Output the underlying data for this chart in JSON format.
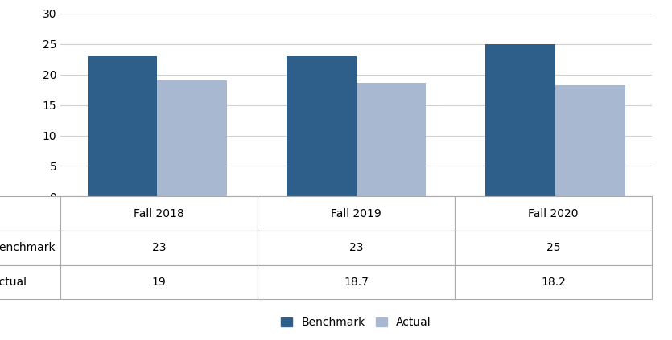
{
  "categories": [
    "Fall 2018",
    "Fall 2019",
    "Fall 2020"
  ],
  "benchmark_values": [
    23,
    23,
    25
  ],
  "actual_values": [
    19,
    18.7,
    18.2
  ],
  "benchmark_color": "#2E5F8A",
  "actual_color": "#A8B8D0",
  "ylim": [
    0,
    30
  ],
  "yticks": [
    0,
    5,
    10,
    15,
    20,
    25,
    30
  ],
  "bar_width": 0.35,
  "legend_label_benchmark": "Benchmark",
  "legend_label_actual": "Actual",
  "benchmark_display": [
    "23",
    "23",
    "25"
  ],
  "actual_display": [
    "19",
    "18.7",
    "18.2"
  ],
  "background_color": "#FFFFFF",
  "grid_color": "#D0D0D0",
  "table_line_color": "#AAAAAA",
  "tick_font_size": 10
}
